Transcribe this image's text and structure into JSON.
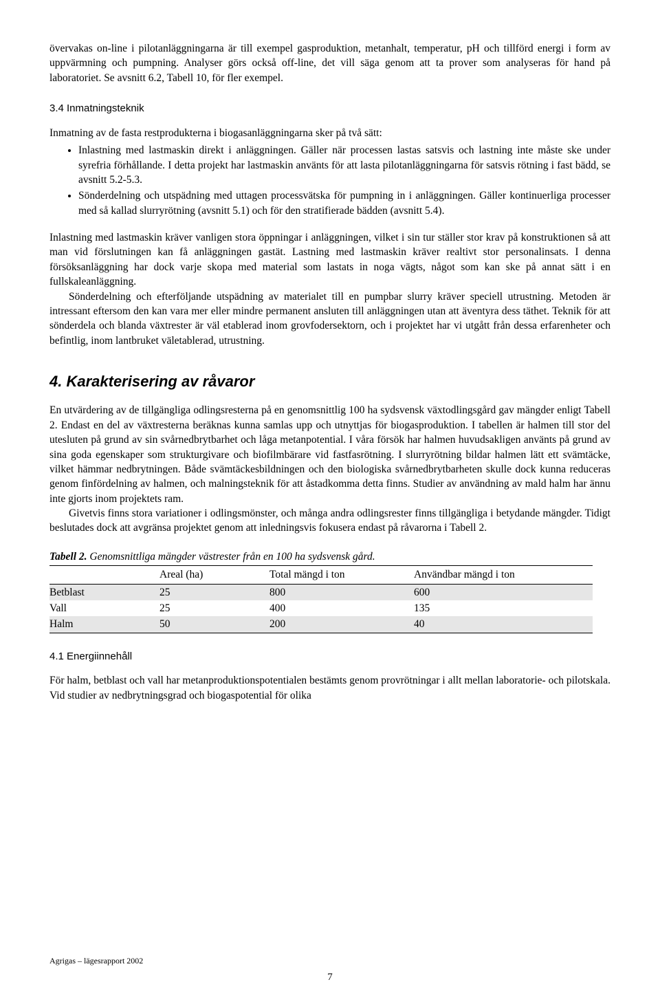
{
  "intro": {
    "p1": "övervakas on-line i pilotanläggningarna är till exempel gasproduktion, metanhalt, temperatur, pH och tillförd energi i form av uppvärmning och pumpning. Analyser görs också off-line, det vill säga genom att ta prover som analyseras för hand på laboratoriet. Se avsnitt 6.2, Tabell 10, för fler exempel."
  },
  "sec34": {
    "heading": "3.4 Inmatningsteknik",
    "lead": "Inmatning av de fasta restprodukterna i biogasanläggningarna sker på två sätt:",
    "bullets": [
      "Inlastning med lastmaskin direkt i anläggningen. Gäller när processen lastas satsvis och lastning inte måste ske under syrefria förhållande. I detta projekt har lastmaskin använts för att lasta pilotanläggningarna för satsvis rötning i fast bädd, se avsnitt 5.2-5.3.",
      "Sönderdelning och utspädning med uttagen processvätska för pumpning in i anläggningen. Gäller kontinuerliga processer med så kallad slurryrötning (avsnitt 5.1) och för den stratifierade bädden (avsnitt 5.4)."
    ],
    "p2": "Inlastning med lastmaskin kräver vanligen stora öppningar i anläggningen, vilket i sin tur ställer stor krav på konstruktionen så att man vid förslutningen kan få anläggningen gastät. Lastning med lastmaskin kräver realtivt stor personalinsats. I denna försöksanläggning har dock varje skopa med material som lastats in noga vägts, något som kan ske på annat sätt i en fullskaleanläggning.",
    "p3": "Sönderdelning och efterföljande utspädning av materialet till en pumpbar slurry kräver speciell utrustning. Metoden är intressant eftersom den kan vara mer eller mindre permanent ansluten till anläggningen utan att äventyra dess täthet. Teknik för att sönderdela och blanda växtrester är väl etablerad inom grovfodersektorn, och i projektet har vi utgått från dessa erfarenheter och befintlig, inom lantbruket väletablerad, utrustning."
  },
  "sec4": {
    "heading": "4. Karakterisering av råvaror",
    "p1": "En utvärdering av de tillgängliga odlingsresterna på en genomsnittlig 100 ha sydsvensk växtodlingsgård gav mängder enligt Tabell 2. Endast en del av växtresterna beräknas kunna samlas upp och utnyttjas för biogasproduktion. I tabellen är halmen till stor del utesluten på grund av sin svårnedbrytbarhet och låga metanpotential. I våra försök har halmen huvudsakligen använts på grund av sina goda egenskaper som strukturgivare och biofilmbärare vid fastfasrötning. I slurryrötning bildar halmen lätt ett svämtäcke, vilket hämmar nedbrytningen. Både svämtäckesbildningen och den biologiska svårnedbrytbarheten skulle dock kunna reduceras genom finfördelning av halmen, och malningsteknik för att åstadkomma detta finns. Studier av användning av mald halm har ännu inte gjorts inom projektets ram.",
    "p2": "Givetvis finns stora variationer i odlingsmönster, och många andra odlingsrester finns tillgängliga i betydande mängder. Tidigt beslutades dock att avgränsa projektet genom att inledningsvis fokusera endast på råvarorna i Tabell 2."
  },
  "table2": {
    "caption_lead": "Tabell 2.",
    "caption_rest": " Genomsnittliga mängder västrester från en 100 ha sydsvensk gård.",
    "header": [
      "",
      "Areal (ha)",
      "Total mängd i ton",
      "Användbar mängd i ton"
    ],
    "rows": [
      [
        "Betblast",
        "25",
        "800",
        "600"
      ],
      [
        "Vall",
        "25",
        "400",
        "135"
      ],
      [
        "Halm",
        "50",
        "200",
        "40"
      ]
    ]
  },
  "sec41": {
    "heading": "4.1 Energiinnehåll",
    "p1": "För halm, betblast och vall har metanproduktionspotentialen bestämts genom provrötningar i allt mellan laboratorie- och pilotskala. Vid studier av nedbrytningsgrad och biogaspotential för olika"
  },
  "footer": {
    "left": "Agrigas – lägesrapport 2002",
    "page": "7"
  }
}
